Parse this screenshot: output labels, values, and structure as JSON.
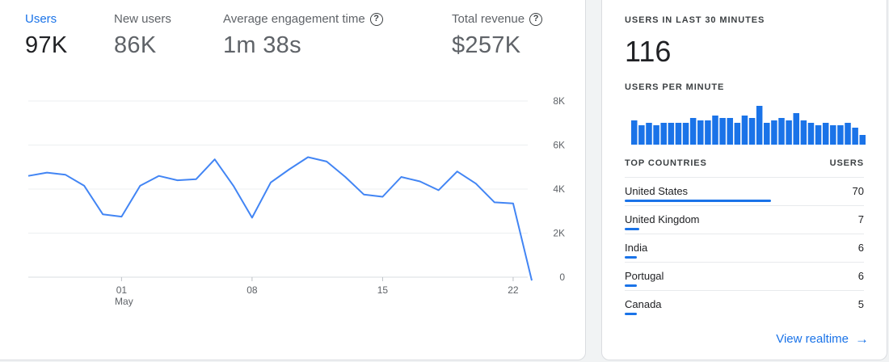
{
  "metrics": [
    {
      "label": "Users",
      "value": "97K",
      "active": true,
      "help": false
    },
    {
      "label": "New users",
      "value": "86K",
      "active": false,
      "help": false
    },
    {
      "label": "Average engagement time",
      "value": "1m 38s",
      "active": false,
      "help": true
    },
    {
      "label": "Total revenue",
      "value": "$257K",
      "active": false,
      "help": true
    }
  ],
  "chart_data": {
    "type": "line",
    "title": "",
    "xlabel": "",
    "ylabel": "",
    "x_tick_labels": [
      {
        "label": "01",
        "sublabel": "May"
      },
      {
        "label": "08",
        "sublabel": ""
      },
      {
        "label": "15",
        "sublabel": ""
      },
      {
        "label": "22",
        "sublabel": ""
      }
    ],
    "y_tick_labels": [
      "8K",
      "6K",
      "4K",
      "2K",
      "0"
    ],
    "ylim": [
      0,
      8000
    ],
    "grid": true,
    "line_color": "#4285f4",
    "series": [
      {
        "name": "Users",
        "x": [
          "Apr 26",
          "Apr 27",
          "Apr 28",
          "Apr 29",
          "Apr 30",
          "May 01",
          "May 02",
          "May 03",
          "May 04",
          "May 05",
          "May 06",
          "May 07",
          "May 08",
          "May 09",
          "May 10",
          "May 11",
          "May 12",
          "May 13",
          "May 14",
          "May 15",
          "May 16",
          "May 17",
          "May 18",
          "May 19",
          "May 20",
          "May 21",
          "May 22",
          "May 23"
        ],
        "values": [
          4600,
          4750,
          4650,
          4150,
          2850,
          2750,
          4150,
          4600,
          4400,
          4450,
          5350,
          4150,
          2700,
          4300,
          4900,
          5450,
          5250,
          4550,
          3750,
          3650,
          4550,
          4350,
          3950,
          4800,
          4250,
          3400,
          3350,
          -150
        ]
      }
    ]
  },
  "realtime": {
    "title": "USERS IN LAST 30 MINUTES",
    "count": "116",
    "per_minute_label": "USERS PER MINUTE",
    "per_minute_color": "#1a73e8",
    "per_minute": [
      5,
      4,
      4.5,
      4,
      4.5,
      4.5,
      4.5,
      4.5,
      5.5,
      5,
      5,
      6,
      5.5,
      5.5,
      4.5,
      6,
      5.5,
      8,
      4.5,
      5,
      5.5,
      5,
      6.5,
      5,
      4.5,
      4,
      4.5,
      4,
      4,
      4.5,
      3.5,
      2
    ]
  },
  "countries": {
    "header_name": "TOP COUNTRIES",
    "header_value": "USERS",
    "rows": [
      {
        "name": "United States",
        "users": "70",
        "share": 0.61
      },
      {
        "name": "United Kingdom",
        "users": "7",
        "share": 0.06
      },
      {
        "name": "India",
        "users": "6",
        "share": 0.05
      },
      {
        "name": "Portugal",
        "users": "6",
        "share": 0.05
      },
      {
        "name": "Canada",
        "users": "5",
        "share": 0.045
      }
    ]
  },
  "link": {
    "label": "View realtime",
    "icon": "arrow-right-icon"
  }
}
